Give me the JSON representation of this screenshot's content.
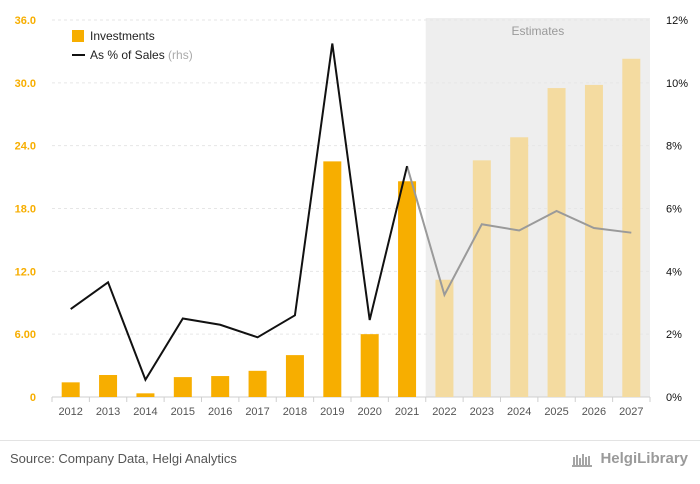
{
  "chart_data": {
    "type": "bar",
    "categories": [
      "2012",
      "2013",
      "2014",
      "2015",
      "2016",
      "2017",
      "2018",
      "2019",
      "2020",
      "2021",
      "2022",
      "2023",
      "2024",
      "2025",
      "2026",
      "2027"
    ],
    "series": [
      {
        "name": "Investments",
        "axis": "left",
        "kind": "bar",
        "values": [
          1.4,
          2.1,
          0.35,
          1.9,
          2.0,
          2.5,
          4.0,
          22.5,
          6.0,
          20.6,
          11.2,
          22.6,
          24.8,
          29.5,
          29.8,
          32.3
        ]
      },
      {
        "name": "As % of Sales",
        "name_suffix": "(rhs)",
        "axis": "right",
        "kind": "line",
        "unit": "%",
        "values": [
          2.8,
          3.65,
          0.55,
          2.5,
          2.3,
          1.9,
          2.6,
          11.25,
          2.45,
          7.35,
          3.25,
          5.5,
          5.3,
          5.92,
          5.38,
          5.23
        ]
      }
    ],
    "estimates_from_index": 10,
    "estimates_label": "Estimates",
    "ylim_left": [
      0,
      36
    ],
    "yticks_left": [
      "0",
      "6.00",
      "12.0",
      "18.0",
      "24.0",
      "30.0",
      "36.0"
    ],
    "ylim_right": [
      0,
      12
    ],
    "yticks_right": [
      "0%",
      "2%",
      "4%",
      "6%",
      "8%",
      "10%",
      "12%"
    ],
    "legend_position": "top-left",
    "grid": true,
    "title": "",
    "xlabel": "",
    "ylabel": ""
  },
  "colors": {
    "bar": "#f7ae00",
    "bar_estimate": "#f4dba0",
    "line": "#111111",
    "line_estimate": "#9a9a9a",
    "estimate_band": "#eeeeee",
    "left_tick": "#f7ae00",
    "right_tick": "#111111"
  },
  "footer": {
    "source": "Source: Company Data, Helgi Analytics",
    "logo_text": "HelgiLibrary"
  }
}
